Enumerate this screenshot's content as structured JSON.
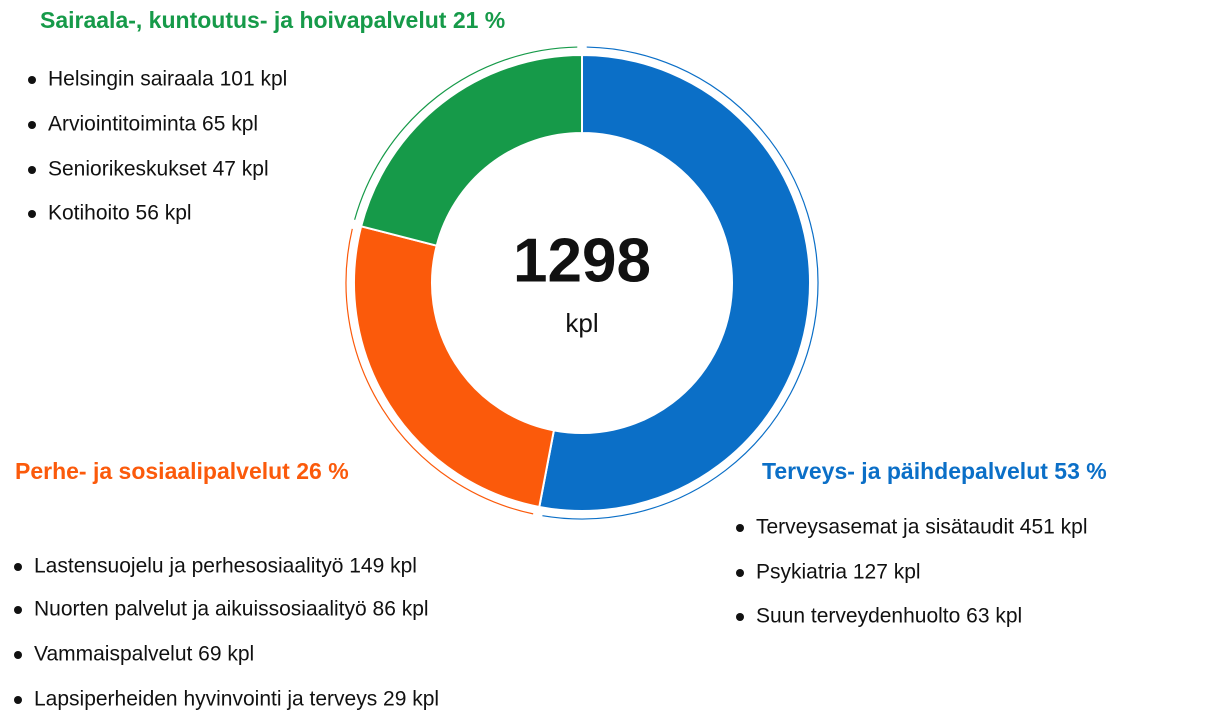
{
  "chart_data": {
    "type": "pie",
    "donut": true,
    "categories": [
      "Terveys- ja päihdepalvelut",
      "Perhe- ja sosiaalipalvelut",
      "Sairaala-, kuntoutus- ja hoivapalvelut"
    ],
    "values": [
      53,
      26,
      21
    ],
    "value_labels": [
      "53 %",
      "26 %",
      "21 %"
    ],
    "colors": [
      "#0b6fc7",
      "#fb5a0b",
      "#169a49"
    ],
    "items": [
      [
        "Terveysasemat ja sisätaudit 451 kpl",
        "Psykiatria 127 kpl",
        "Suun terveydenhuolto 63 kpl"
      ],
      [
        "Lastensuojelu ja perhesosiaalityö 149 kpl",
        "Nuorten palvelut ja aikuissosiaalityö 86 kpl",
        "Vammaispalvelut 69 kpl",
        "Lapsiperheiden hyvinvointi ja terveys 29 kpl"
      ],
      [
        "Helsingin sairaala 101 kpl",
        "Arviointitoiminta 65 kpl",
        "Seniorikeskukset 47 kpl",
        "Kotihoito 56 kpl"
      ]
    ],
    "total": "1298",
    "total_unit": "kpl"
  }
}
